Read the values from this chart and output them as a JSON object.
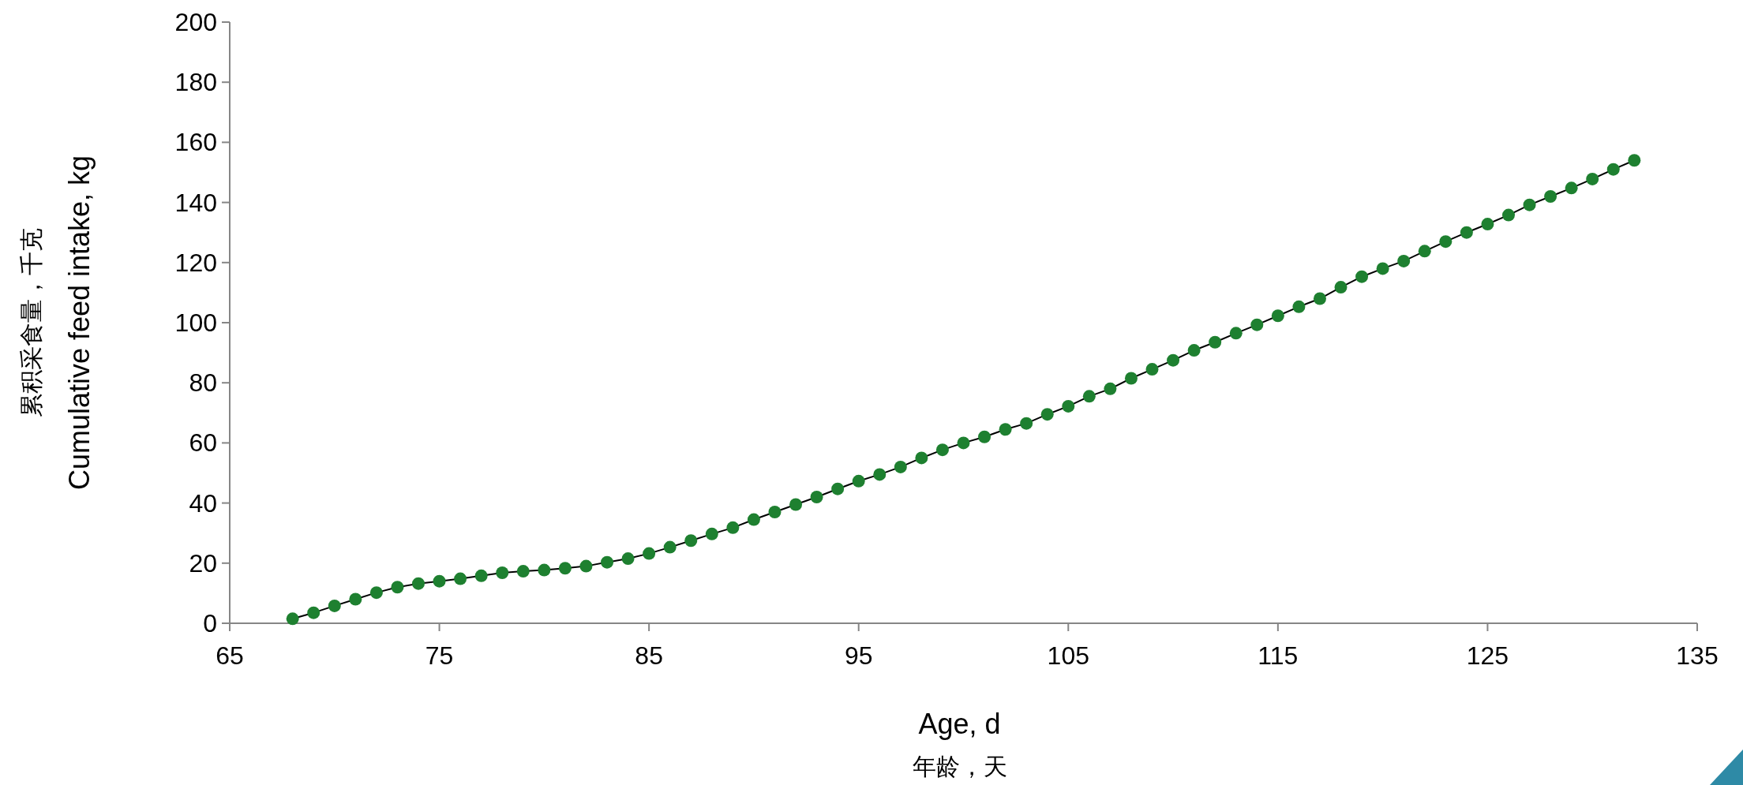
{
  "chart_data": {
    "type": "line",
    "xlabel": "Age, d\n年龄，天",
    "ylabel": "累积采食量，千克\nCumulative feed intake, kg",
    "x": [
      68,
      69,
      70,
      71,
      72,
      73,
      74,
      75,
      76,
      77,
      78,
      79,
      80,
      81,
      82,
      83,
      84,
      85,
      86,
      87,
      88,
      89,
      90,
      91,
      92,
      93,
      94,
      95,
      96,
      97,
      98,
      99,
      100,
      101,
      102,
      103,
      104,
      105,
      106,
      107,
      108,
      109,
      110,
      111,
      112,
      113,
      114,
      115,
      116,
      117,
      118,
      119,
      120,
      121,
      122,
      123,
      124,
      125,
      126,
      127,
      128,
      129,
      130,
      131,
      132
    ],
    "series": [
      {
        "color": "#1e8030",
        "values": [
          1.5,
          3.5,
          5.8,
          8,
          10.2,
          12,
          13.2,
          14,
          14.8,
          15.8,
          16.8,
          17.3,
          17.7,
          18.3,
          19,
          20.3,
          21.5,
          23.2,
          25.3,
          27.5,
          29.7,
          31.8,
          34.5,
          37,
          39.5,
          42,
          44.7,
          47.3,
          49.5,
          52,
          55,
          57.7,
          60,
          62,
          64.5,
          66.5,
          69.5,
          72.2,
          75.5,
          78,
          81.5,
          84.5,
          87.5,
          90.8,
          93.5,
          96.5,
          99.3,
          102.3,
          105.3,
          108,
          111.8,
          115.3,
          118,
          120.5,
          123.8,
          127,
          130,
          132.8,
          135.8,
          139.2,
          142,
          144.8,
          147.8,
          151,
          154
        ]
      }
    ],
    "xlim": [
      65,
      135
    ],
    "xticks": [
      65,
      75,
      85,
      95,
      105,
      115,
      125,
      135
    ],
    "ylim": [
      0,
      200
    ],
    "yticks": [
      0,
      20,
      40,
      60,
      80,
      100,
      120,
      140,
      160,
      180,
      200
    ],
    "marker": "circle",
    "grid": false
  }
}
